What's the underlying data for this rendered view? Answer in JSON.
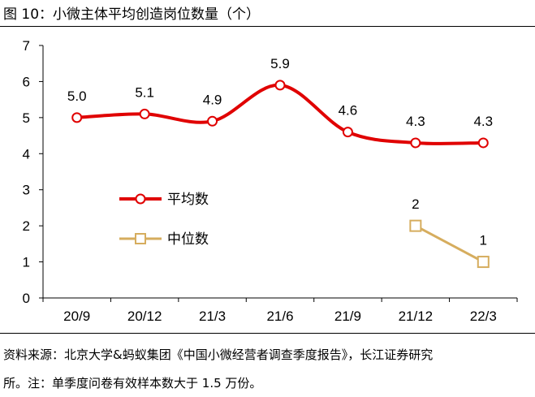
{
  "figure": {
    "title": "图 10：小微主体平均创造岗位数量（个）",
    "source_line1": "资料来源：北京大学&蚂蚁集团《中国小微经营者调查季度报告》，长江证券研究",
    "source_line2": "所。注：单季度问卷有效样本数大于 1.5 万份。"
  },
  "chart_data": {
    "type": "line",
    "title": "小微主体平均创造岗位数量（个）",
    "categories": [
      "20/9",
      "20/12",
      "21/3",
      "21/6",
      "21/9",
      "21/12",
      "22/3"
    ],
    "ylim": [
      0,
      7
    ],
    "yticks": [
      "0",
      "1",
      "2",
      "3",
      "4",
      "5",
      "6",
      "7"
    ],
    "grid": false,
    "legend_position": "center-left",
    "series": [
      {
        "name": "平均数",
        "color": "#e00000",
        "marker": "circle",
        "smooth": true,
        "values": [
          5.0,
          5.1,
          4.9,
          5.9,
          4.6,
          4.3,
          4.3
        ],
        "labels": [
          "5.0",
          "5.1",
          "4.9",
          "5.9",
          "4.6",
          "4.3",
          "4.3"
        ]
      },
      {
        "name": "中位数",
        "color": "#d6ad5e",
        "marker": "square",
        "smooth": false,
        "values": [
          null,
          null,
          null,
          null,
          null,
          2,
          1
        ],
        "labels": [
          null,
          null,
          null,
          null,
          null,
          "2",
          "1"
        ]
      }
    ]
  }
}
